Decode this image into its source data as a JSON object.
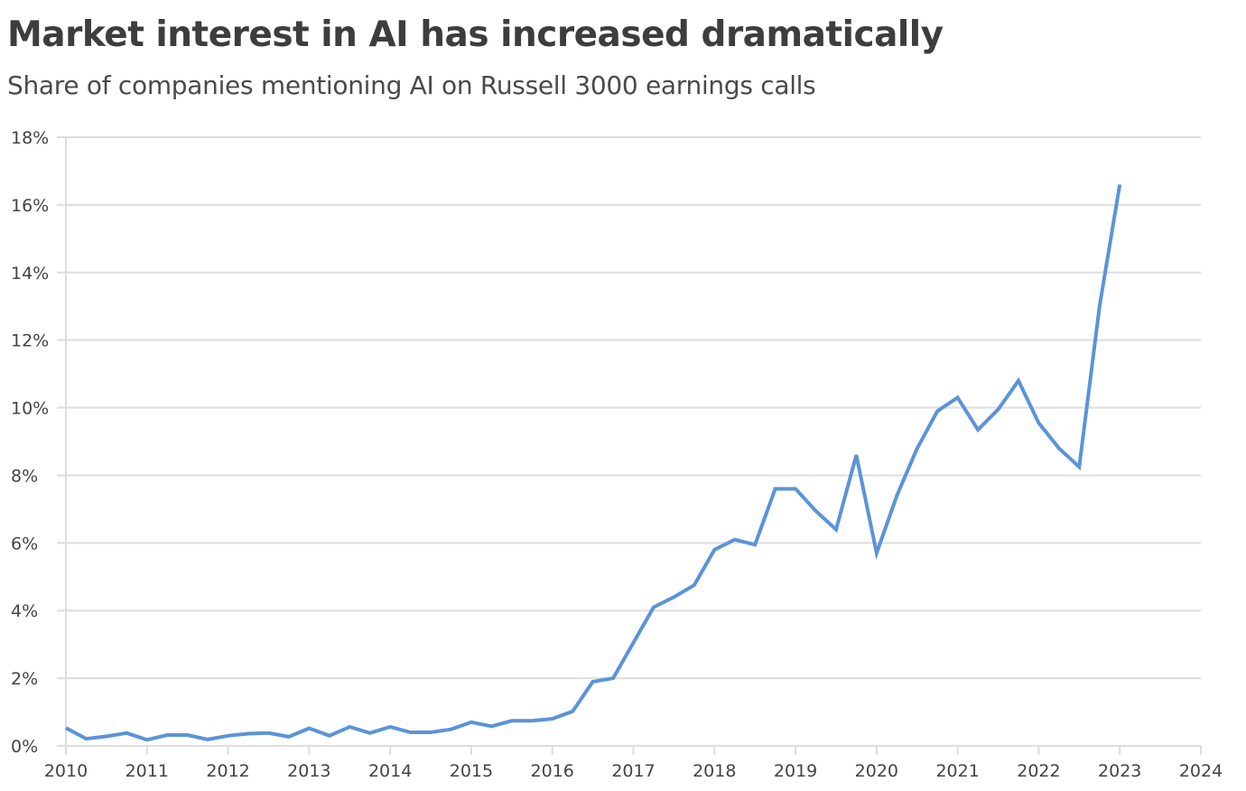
{
  "chart_data": {
    "type": "line",
    "title": "Market interest in AI has increased dramatically",
    "subtitle": "Share of companies mentioning AI on Russell 3000 earnings calls",
    "xlabel": "",
    "ylabel": "",
    "xlim": [
      2010,
      2024
    ],
    "ylim": [
      0,
      18
    ],
    "grid": true,
    "x_ticks": [
      2010,
      2011,
      2012,
      2013,
      2014,
      2015,
      2016,
      2017,
      2018,
      2019,
      2020,
      2021,
      2022,
      2023,
      2024
    ],
    "x_tick_labels": [
      "2010",
      "2011",
      "2012",
      "2013",
      "2014",
      "2015",
      "2016",
      "2017",
      "2018",
      "2019",
      "2020",
      "2021",
      "2022",
      "2023",
      "2024"
    ],
    "y_ticks": [
      0,
      2,
      4,
      6,
      8,
      10,
      12,
      14,
      16,
      18
    ],
    "y_tick_labels": [
      "0%",
      "2%",
      "4%",
      "6%",
      "8%",
      "10%",
      "12%",
      "14%",
      "16%",
      "18%"
    ],
    "series": [
      {
        "name": "Share of companies mentioning AI",
        "color": "#5b93d9",
        "x": [
          2010.0,
          2010.25,
          2010.5,
          2010.75,
          2011.0,
          2011.25,
          2011.5,
          2011.75,
          2012.0,
          2012.25,
          2012.5,
          2012.75,
          2013.0,
          2013.25,
          2013.5,
          2013.75,
          2014.0,
          2014.25,
          2014.5,
          2014.75,
          2015.0,
          2015.25,
          2015.5,
          2015.75,
          2016.0,
          2016.25,
          2016.5,
          2016.75,
          2017.0,
          2017.25,
          2017.5,
          2017.75,
          2018.0,
          2018.25,
          2018.5,
          2018.75,
          2019.0,
          2019.25,
          2019.5,
          2019.75,
          2020.0,
          2020.25,
          2020.5,
          2020.75,
          2021.0,
          2021.25,
          2021.5,
          2021.75,
          2022.0,
          2022.25,
          2022.5,
          2022.75,
          2023.0
        ],
        "values": [
          0.53,
          0.21,
          0.28,
          0.38,
          0.18,
          0.32,
          0.32,
          0.19,
          0.3,
          0.36,
          0.38,
          0.27,
          0.52,
          0.3,
          0.56,
          0.38,
          0.56,
          0.4,
          0.4,
          0.49,
          0.7,
          0.58,
          0.74,
          0.74,
          0.8,
          1.02,
          1.9,
          2.0,
          3.05,
          4.1,
          4.4,
          4.75,
          5.8,
          6.1,
          5.95,
          7.6,
          7.6,
          6.95,
          6.4,
          8.6,
          5.7,
          7.4,
          8.8,
          9.9,
          10.3,
          9.35,
          9.95,
          10.8,
          9.55,
          8.8,
          8.25,
          13.0,
          16.6
        ]
      }
    ]
  }
}
